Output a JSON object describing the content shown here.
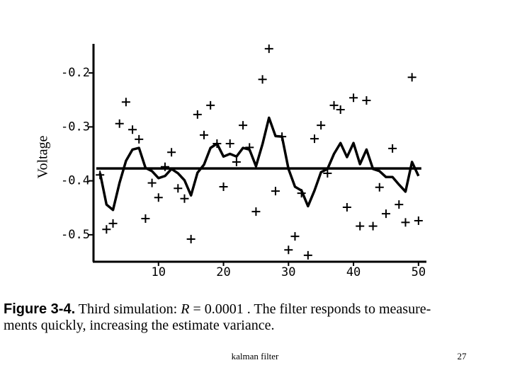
{
  "chart_data": {
    "type": "line",
    "ylabel": "Voltage",
    "xlim": [
      0,
      51
    ],
    "ylim": [
      -0.55,
      -0.15
    ],
    "xticks": [
      10,
      20,
      30,
      40,
      50
    ],
    "yticks": [
      -0.5,
      -0.4,
      -0.3,
      -0.2
    ],
    "x": [
      1,
      2,
      3,
      4,
      5,
      6,
      7,
      8,
      9,
      10,
      11,
      12,
      13,
      14,
      15,
      16,
      17,
      18,
      19,
      20,
      21,
      22,
      23,
      24,
      25,
      26,
      27,
      28,
      29,
      30,
      31,
      32,
      33,
      34,
      35,
      36,
      37,
      38,
      39,
      40,
      41,
      42,
      43,
      44,
      45,
      46,
      47,
      48,
      49,
      50
    ],
    "reference_line": {
      "value": -0.377,
      "color": "#000000"
    },
    "series": [
      {
        "style": "markers",
        "color": "#000000",
        "values": [
          -0.389,
          -0.49,
          -0.479,
          -0.294,
          -0.254,
          -0.305,
          -0.323,
          -0.47,
          -0.404,
          -0.431,
          -0.374,
          -0.347,
          -0.414,
          -0.433,
          -0.508,
          -0.277,
          -0.315,
          -0.26,
          -0.331,
          -0.411,
          -0.331,
          -0.365,
          -0.297,
          -0.338,
          -0.457,
          -0.212,
          -0.155,
          -0.419,
          -0.318,
          -0.528,
          -0.503,
          -0.423,
          -0.538,
          -0.322,
          -0.297,
          -0.386,
          -0.26,
          -0.268,
          -0.449,
          -0.246,
          -0.484,
          -0.251,
          -0.484,
          -0.412,
          -0.461,
          -0.34,
          -0.444,
          -0.477,
          -0.208,
          -0.474
        ]
      },
      {
        "style": "line",
        "color": "#000000",
        "values": [
          -0.385,
          -0.444,
          -0.454,
          -0.404,
          -0.363,
          -0.342,
          -0.339,
          -0.376,
          -0.382,
          -0.395,
          -0.391,
          -0.378,
          -0.386,
          -0.399,
          -0.427,
          -0.385,
          -0.37,
          -0.339,
          -0.331,
          -0.355,
          -0.35,
          -0.355,
          -0.339,
          -0.342,
          -0.373,
          -0.332,
          -0.283,
          -0.317,
          -0.318,
          -0.378,
          -0.411,
          -0.418,
          -0.447,
          -0.418,
          -0.384,
          -0.378,
          -0.35,
          -0.33,
          -0.356,
          -0.33,
          -0.369,
          -0.342,
          -0.378,
          -0.382,
          -0.393,
          -0.393,
          -0.407,
          -0.42,
          -0.365,
          -0.391
        ]
      }
    ]
  },
  "caption": {
    "label": "Figure 3-4.",
    "lead": "Third simulation:",
    "symbol": "R",
    "rest": "= 0.0001 . The filter responds to measure-",
    "line2": "ments quickly, increasing the estimate variance."
  },
  "footer": {
    "left": "kalman filter",
    "right": "27"
  }
}
